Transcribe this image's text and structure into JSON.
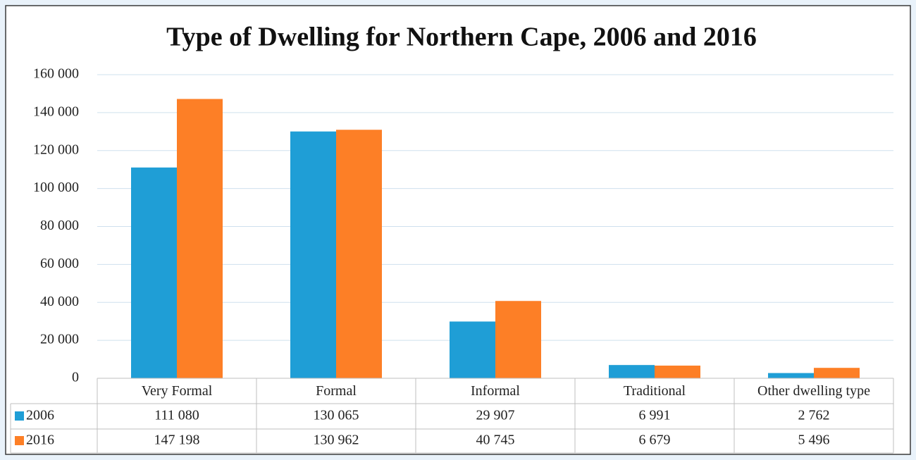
{
  "chart_data": {
    "type": "bar",
    "title": "Type of Dwelling for Northern Cape, 2006 and 2016",
    "categories": [
      "Very Formal",
      "Formal",
      "Informal",
      "Traditional",
      "Other dwelling type"
    ],
    "series": [
      {
        "name": "2006",
        "color": "#1f9ed6",
        "values": [
          111080,
          130065,
          29907,
          6991,
          2762
        ],
        "value_labels": [
          "111 080",
          "130 065",
          "29 907",
          "6 991",
          "2 762"
        ]
      },
      {
        "name": "2016",
        "color": "#fd7f26",
        "values": [
          147198,
          130962,
          40745,
          6679,
          5496
        ],
        "value_labels": [
          "147 198",
          "130 962",
          "40 745",
          "6 679",
          "5 496"
        ]
      }
    ],
    "ylim": [
      0,
      160000
    ],
    "yticks": [
      0,
      {
        "value": 20000,
        "label": "20 000"
      },
      {
        "value": 40000,
        "label": "40 000"
      },
      {
        "value": 60000,
        "label": "60 000"
      },
      {
        "value": 80000,
        "label": "80 000"
      },
      {
        "value": 100000,
        "label": "100 000"
      },
      {
        "value": 120000,
        "label": "120 000"
      },
      {
        "value": 140000,
        "label": "140 000"
      },
      {
        "value": 160000,
        "label": "160 000"
      }
    ],
    "grid": true
  }
}
